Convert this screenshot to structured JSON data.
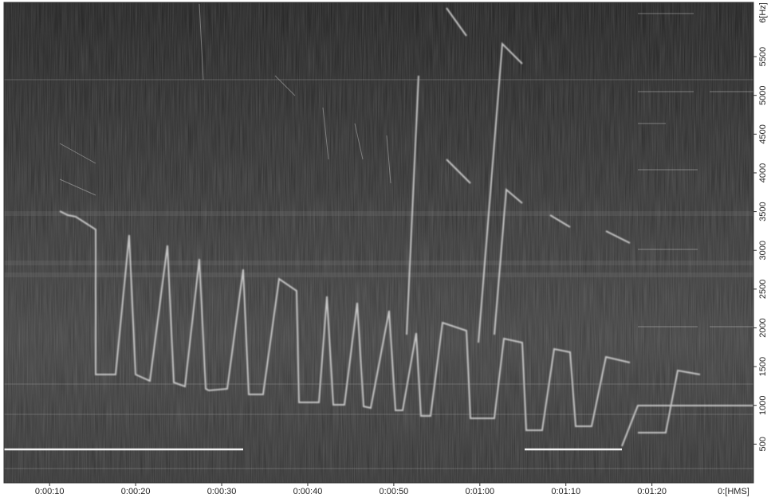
{
  "chart_data": {
    "type": "spectrogram",
    "xlim": [
      4.7,
      91.8
    ],
    "xticks": [
      {
        "value": 10,
        "label": "0:00:10"
      },
      {
        "value": 20,
        "label": "0:00:20"
      },
      {
        "value": 30,
        "label": "0:00:30"
      },
      {
        "value": 40,
        "label": "0:00:40"
      },
      {
        "value": 50,
        "label": "0:00:50"
      },
      {
        "value": 60,
        "label": "0:01:00"
      },
      {
        "value": 70,
        "label": "0:01:10"
      },
      {
        "value": 80,
        "label": "0:01:20"
      }
    ],
    "xlabel": "0:[HMS]",
    "ylim": [
      0,
      6200
    ],
    "yticks": [
      500,
      1000,
      1500,
      2000,
      2500,
      3000,
      3500,
      4000,
      4500,
      5000,
      5500
    ],
    "ylabel": "6[Hz]"
  }
}
